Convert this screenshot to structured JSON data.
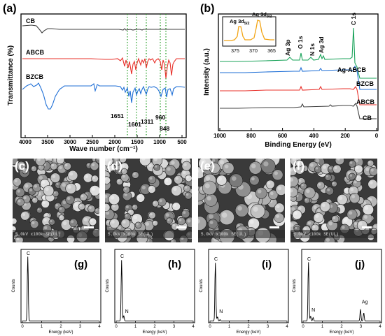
{
  "ftir": {
    "panel_label": "(a)",
    "xlabel": "Wave number (cm⁻¹)",
    "ylabel": "Transmittance (%)",
    "xticks": [
      "4000",
      "3500",
      "3000",
      "2500",
      "2000",
      "1500",
      "1000",
      "500"
    ],
    "series_labels": [
      "CB",
      "ABCB",
      "BZCB"
    ],
    "annotations": [
      "1651",
      "1601",
      "1311",
      "960",
      "848"
    ],
    "colors": {
      "CB": "#404040",
      "ABCB": "#e8302a",
      "BZCB": "#1f6fd6",
      "marker": "#1a9a1a"
    }
  },
  "xps": {
    "panel_label": "(b)",
    "xlabel": "Binding Energy (eV)",
    "ylabel": "Intensity (a.u.)",
    "xticks": [
      "1000",
      "800",
      "600",
      "400",
      "200",
      "0"
    ],
    "series_labels": [
      "Ag-ABCB",
      "BZCB",
      "ABCB",
      "CB"
    ],
    "peak_labels": [
      "Ag 3p",
      "O 1s",
      "N 1s",
      "Ag 3d",
      "C 1s"
    ],
    "inset": {
      "peaks": [
        "Ag 3d5/2",
        "Ag 3d3/2"
      ],
      "peak_main": [
        "Ag 3d",
        "Ag 3d"
      ],
      "peak_sub": [
        "5/2",
        "3/2"
      ],
      "xticks": [
        "375",
        "370",
        "365"
      ]
    },
    "colors": {
      "Ag-ABCB": "#1aa35a",
      "BZCB": "#1f6fd6",
      "ABCB": "#e8302a",
      "CB": "#404040",
      "inset": "#f2a516"
    }
  },
  "sem": {
    "panel_labels": [
      "(c)",
      "(d)",
      "(e)",
      "(f)"
    ],
    "info_bar": "5.0kV x100k SE(UL)"
  },
  "edx": {
    "panel_labels": [
      "(g)",
      "(h)",
      "(i)",
      "(j)"
    ],
    "xlabel": "Energy (keV)",
    "ylabel": "Counts",
    "xticks": [
      "0",
      "1",
      "2",
      "3",
      "4"
    ],
    "peak_labels": [
      [
        "C"
      ],
      [
        "C",
        "N"
      ],
      [
        "C",
        "N"
      ],
      [
        "C",
        "N",
        "Ag"
      ]
    ]
  }
}
